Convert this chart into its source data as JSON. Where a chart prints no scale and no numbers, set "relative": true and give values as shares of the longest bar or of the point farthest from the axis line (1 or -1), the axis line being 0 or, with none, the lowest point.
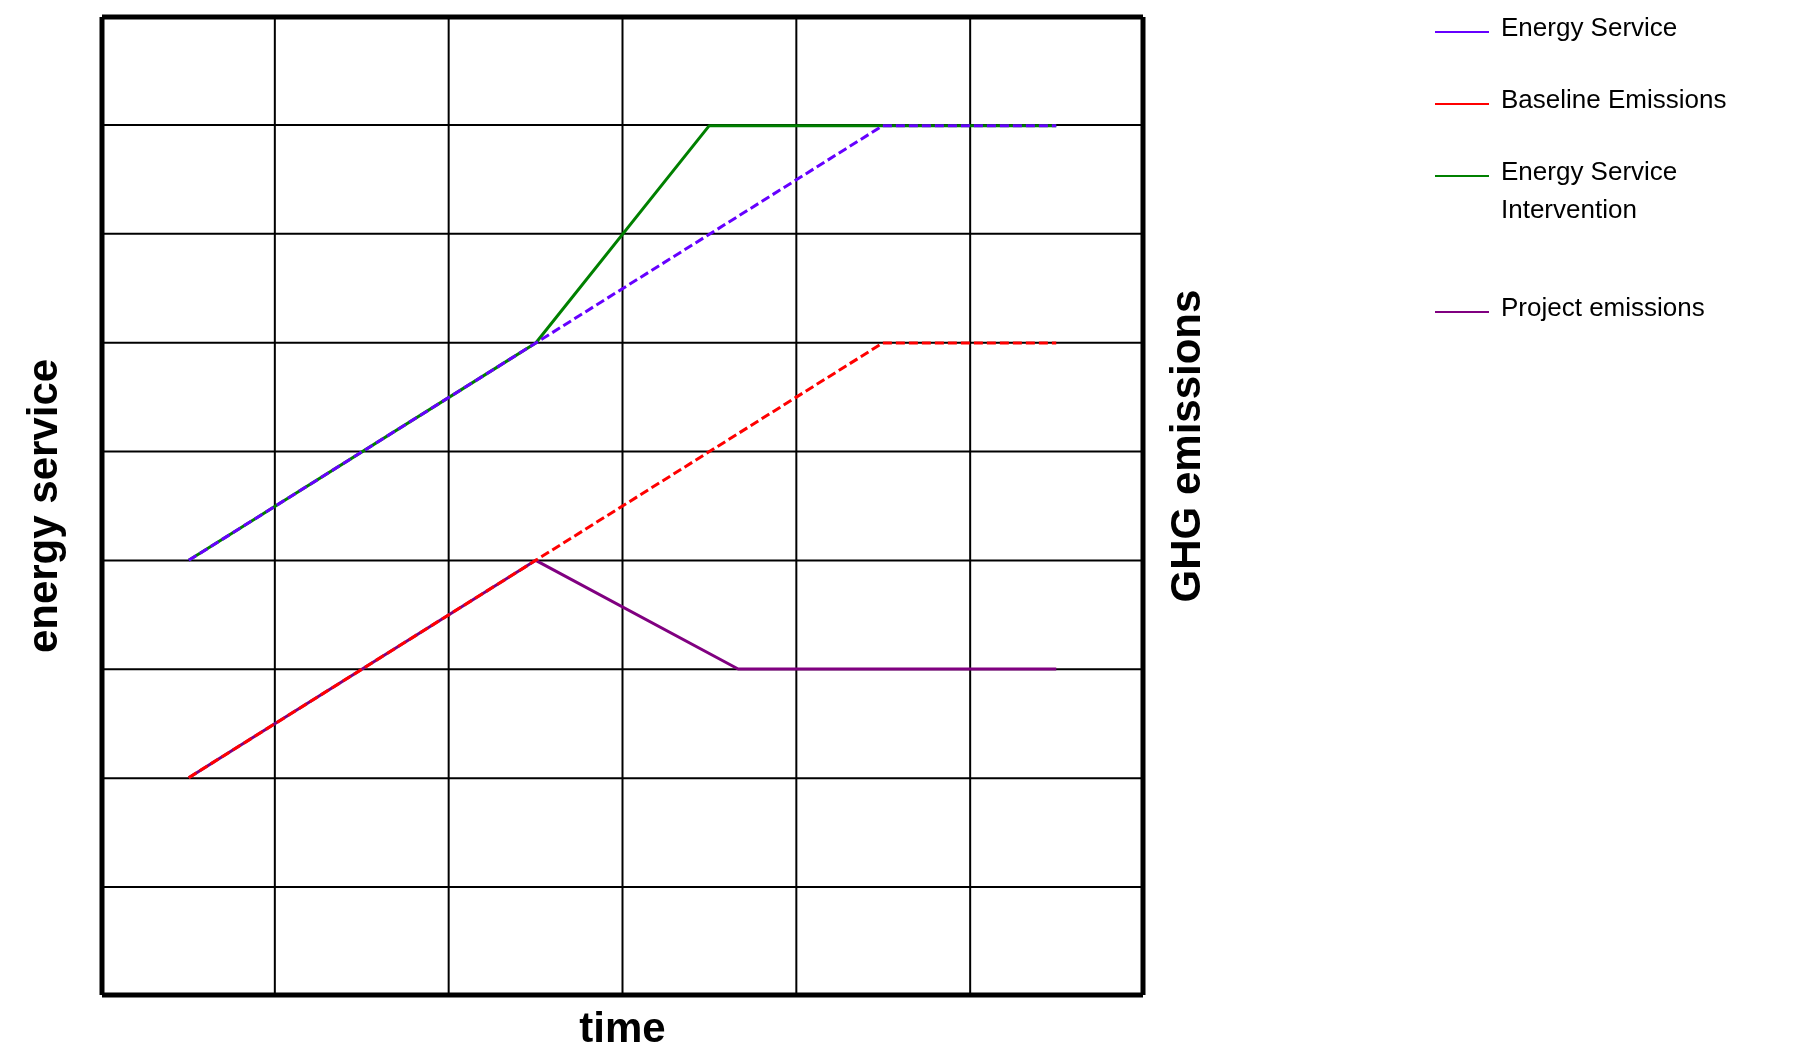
{
  "chart_data": {
    "type": "line",
    "relative": true,
    "xlabel": "time",
    "ylabel": "energy service",
    "y2label": "GHG emissions",
    "grid": true,
    "legend": "top right",
    "marker": "none",
    "categories": [
      null,
      null,
      null,
      null,
      null,
      null,
      null,
      null,
      null,
      null,
      null,
      null,
      null,
      null,
      null,
      null,
      null,
      null,
      null,
      null,
      null,
      null,
      null,
      null,
      null,
      null,
      null,
      null,
      null,
      null,
      null,
      null,
      null,
      null,
      null,
      null,
      null
    ],
    "series": [
      {
        "name": "Energy Service",
        "color": "#6600ff",
        "line_style": "dashed",
        "values": [
          null,
          null,
          null,
          0.5,
          null,
          null,
          null,
          null,
          null,
          null,
          null,
          null,
          null,
          null,
          null,
          0.75,
          null,
          null,
          null,
          null,
          null,
          null,
          null,
          null,
          null,
          null,
          null,
          1,
          null,
          null,
          null,
          null,
          null,
          1,
          null,
          null,
          null
        ]
      },
      {
        "name": "Baseline Emissions",
        "color": "#ff0000",
        "line_style": "dashed",
        "values": [
          null,
          null,
          null,
          0.25,
          null,
          null,
          null,
          null,
          null,
          null,
          null,
          null,
          null,
          null,
          null,
          0.5,
          null,
          null,
          null,
          null,
          null,
          null,
          null,
          null,
          null,
          null,
          null,
          0.75,
          null,
          null,
          null,
          null,
          null,
          0.75,
          null,
          null,
          null
        ]
      },
      {
        "name": "Energy Service Intervention",
        "color": "#008000",
        "line_style": "solid",
        "values": [
          null,
          null,
          null,
          0.5,
          null,
          null,
          null,
          null,
          null,
          null,
          null,
          null,
          null,
          null,
          null,
          0.75,
          null,
          null,
          null,
          null,
          null,
          1,
          null,
          null,
          null,
          null,
          null,
          null,
          null,
          null,
          null,
          null,
          null,
          1,
          null,
          null,
          null
        ]
      },
      {
        "name": "Project emissions",
        "color": "#800080",
        "line_style": "solid",
        "values": [
          null,
          null,
          null,
          0.25,
          null,
          null,
          null,
          null,
          null,
          null,
          null,
          null,
          null,
          null,
          null,
          0.5,
          null,
          null,
          null,
          null,
          null,
          null,
          0.375,
          null,
          null,
          null,
          null,
          null,
          null,
          null,
          null,
          null,
          null,
          0.375,
          null,
          null,
          null
        ]
      }
    ]
  }
}
